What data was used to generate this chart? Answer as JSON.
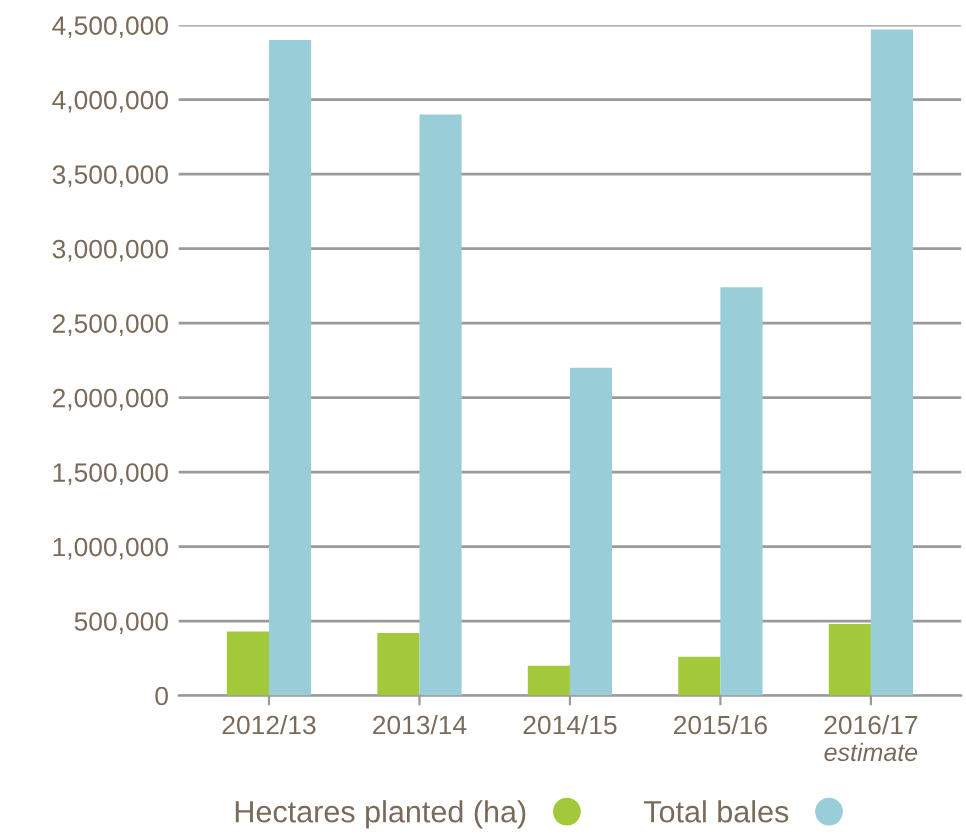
{
  "chart_data": {
    "type": "bar",
    "categories": [
      "2012/13",
      "2013/14",
      "2014/15",
      "2015/16",
      "2016/17"
    ],
    "series": [
      {
        "name": "Hectares planted (ha)",
        "color": "#a2c93a",
        "values": [
          430000,
          420000,
          200000,
          260000,
          480000
        ]
      },
      {
        "name": "Total bales",
        "color": "#99ced9",
        "values": [
          4400000,
          3900000,
          2200000,
          2740000,
          4470000
        ]
      }
    ],
    "ylim": [
      0,
      4500000
    ],
    "yticks": [
      0,
      {
        "value": 500000,
        "label": "500,000"
      },
      {
        "value": 1000000,
        "label": "1,000,000"
      },
      {
        "value": 1500000,
        "label": "1,500,000"
      },
      {
        "value": 2000000,
        "label": "2,000,000"
      },
      {
        "value": 2500000,
        "label": "2,500,000"
      },
      {
        "value": 3000000,
        "label": "3,000,000"
      },
      {
        "value": 3500000,
        "label": "3,500,000"
      },
      {
        "value": 4000000,
        "label": "4,000,000"
      },
      {
        "value": 4500000,
        "label": "4,500,000"
      }
    ],
    "annotations": [
      "estimate"
    ],
    "grid": "y",
    "legend": "bottom"
  }
}
